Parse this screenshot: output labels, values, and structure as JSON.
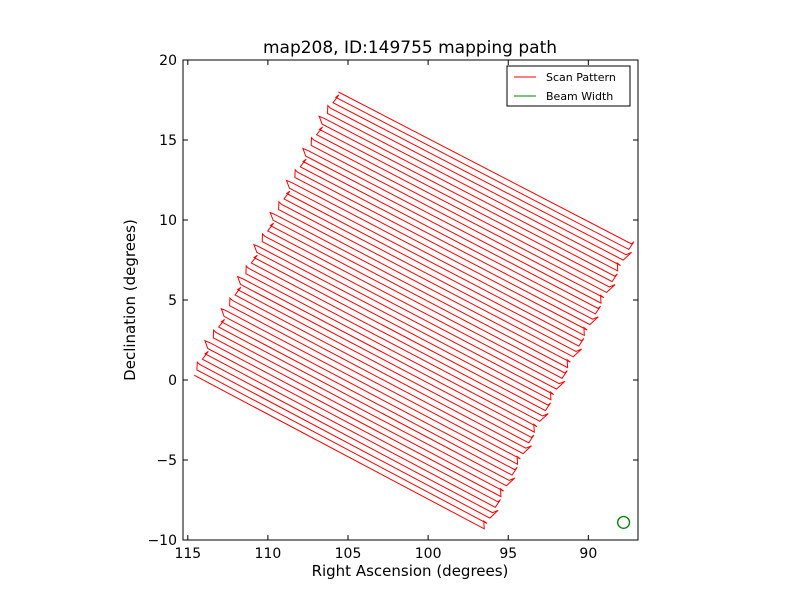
{
  "chart_data": {
    "type": "line",
    "title": "map208, ID:149755 mapping path",
    "xlabel": "Right Ascension (degrees)",
    "ylabel": "Declination (degrees)",
    "xlim": [
      115.3,
      86.9
    ],
    "ylim": [
      -10,
      20
    ],
    "x_ticks": [
      115,
      110,
      105,
      100,
      95,
      90
    ],
    "x_tick_labels": [
      "115",
      "110",
      "105",
      "100",
      "95",
      "90"
    ],
    "y_ticks": [
      -10,
      -5,
      0,
      5,
      10,
      15,
      20
    ],
    "y_tick_labels": [
      "−10",
      "−5",
      "0",
      "5",
      "10",
      "15",
      "20"
    ],
    "grid": false,
    "legend": {
      "position": "top-right",
      "entries": [
        "Scan Pattern",
        "Beam Width"
      ]
    },
    "series": [
      {
        "name": "Scan Pattern",
        "color": "#ff0000",
        "pattern": "raster",
        "corners": {
          "start": [
            114.6,
            0.3
          ],
          "end_of_first_leg": [
            96.5,
            -9.3
          ],
          "last_leg_start": [
            105.6,
            18.0
          ],
          "last_leg_end": [
            87.3,
            8.5
          ]
        },
        "scan_lines": 54
      },
      {
        "name": "Beam Width",
        "color": "#008000",
        "center": [
          87.8,
          -8.9
        ],
        "radius_deg": 0.37
      }
    ]
  },
  "colors": {
    "scan": "#ff0000",
    "beam": "#008000",
    "axes": "#000000"
  }
}
